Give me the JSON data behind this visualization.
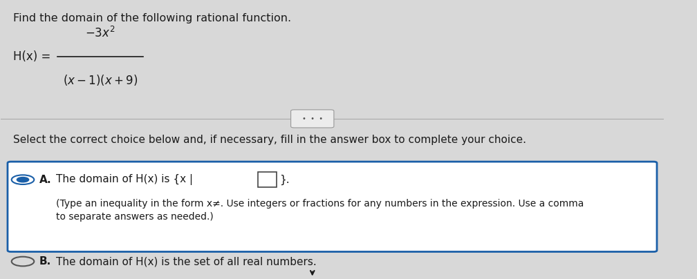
{
  "bg_color": "#d8d8d8",
  "title_text": "Find the domain of the following rational function.",
  "function_lhs": "H(x) = ",
  "numerator": "−3x²",
  "denominator": "(x−1)(x+9)",
  "separator_dots": "•  •  •",
  "instruction_text": "Select the correct choice below and, if necessary, fill in the answer box to complete your choice.",
  "option_a_label": "A.",
  "option_a_text": "The domain of H(x) is {x | □}.",
  "option_a_sub": "(Type an inequality in the form x≠. Use integers or fractions for any numbers in the expression. Use a comma\nto separate answers as needed.)",
  "option_b_label": "B.",
  "option_b_text": "The domain of H(x) is the set of all real numbers.",
  "radio_a_selected": true,
  "radio_b_selected": false,
  "text_color": "#1a1a1a",
  "box_border_color": "#1a5fa8",
  "box_bg_color": "#ffffff",
  "title_fontsize": 11.5,
  "body_fontsize": 11,
  "sub_fontsize": 10
}
